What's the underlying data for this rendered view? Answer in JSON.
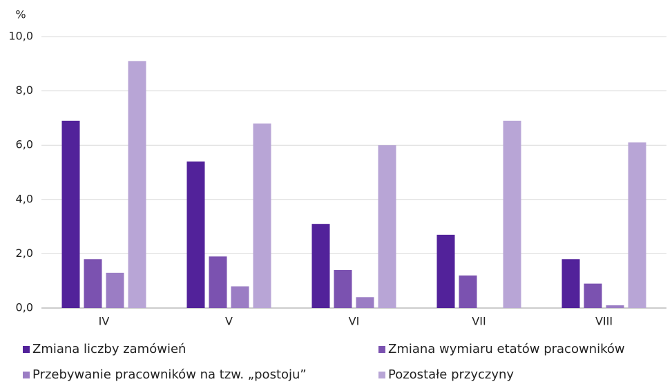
{
  "chart_data": {
    "type": "bar",
    "unit_label": "%",
    "categories": [
      "IV",
      "V",
      "VI",
      "VII",
      "VIII"
    ],
    "series": [
      {
        "name": "Zmiana liczby zamówień",
        "color": "#52229a",
        "values": [
          6.9,
          5.4,
          3.1,
          2.7,
          1.8
        ]
      },
      {
        "name": "Zmiana wymiaru etatów pracowników",
        "color": "#7b52b0",
        "values": [
          1.8,
          1.9,
          1.4,
          1.2,
          0.9
        ]
      },
      {
        "name": "Przebywanie pracowników na tzw. „postoju”",
        "color": "#9b7dc4",
        "values": [
          1.3,
          0.8,
          0.4,
          0,
          0.1
        ]
      },
      {
        "name": "Pozostałe przyczyny",
        "color": "#b8a5d6",
        "values": [
          9.1,
          6.8,
          6.0,
          6.9,
          6.1
        ]
      }
    ],
    "ylim": [
      0,
      10
    ],
    "yticks": [
      {
        "value": 0,
        "label": "0,0"
      },
      {
        "value": 2,
        "label": "2,0"
      },
      {
        "value": 4,
        "label": "4,0"
      },
      {
        "value": 6,
        "label": "6,0"
      },
      {
        "value": 8,
        "label": "8,0"
      },
      {
        "value": 10,
        "label": "10,0"
      }
    ],
    "grid": true
  }
}
